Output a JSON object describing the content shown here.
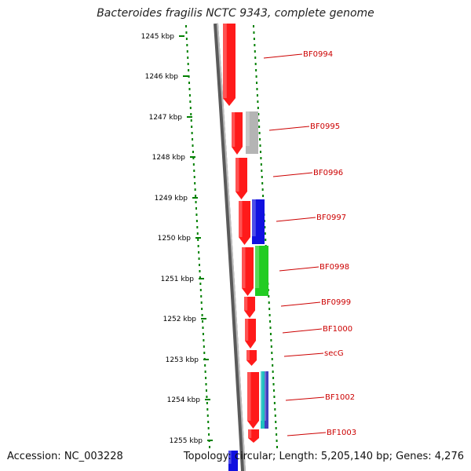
{
  "title": "Bacteroides fragilis NCTC 9343, complete genome",
  "accession": "Accession: NC_003228",
  "topology": "Topology: circular; Length: 5,205,140 bp; Genes: 4,276",
  "colors": {
    "forward_gene": "#ff1a1a",
    "grey_gene": "#b4b4b4",
    "blue_gene": "#1010e0",
    "green_gene": "#22cc22",
    "teal_gene": "#20c0c0",
    "label": "#cc0000",
    "tick": "#008000",
    "backbone": "#777777"
  },
  "ticks": [
    "1245 kbp",
    "1246 kbp",
    "1247 kbp",
    "1248 kbp",
    "1249 kbp",
    "1250 kbp",
    "1251 kbp",
    "1252 kbp",
    "1253 kbp",
    "1254 kbp",
    "1255 kbp"
  ],
  "genes": [
    "BF0994",
    "BF0995",
    "BF0996",
    "BF0997",
    "BF0998",
    "BF0999",
    "BF1000",
    "secG",
    "BF1002",
    "BF1003"
  ]
}
